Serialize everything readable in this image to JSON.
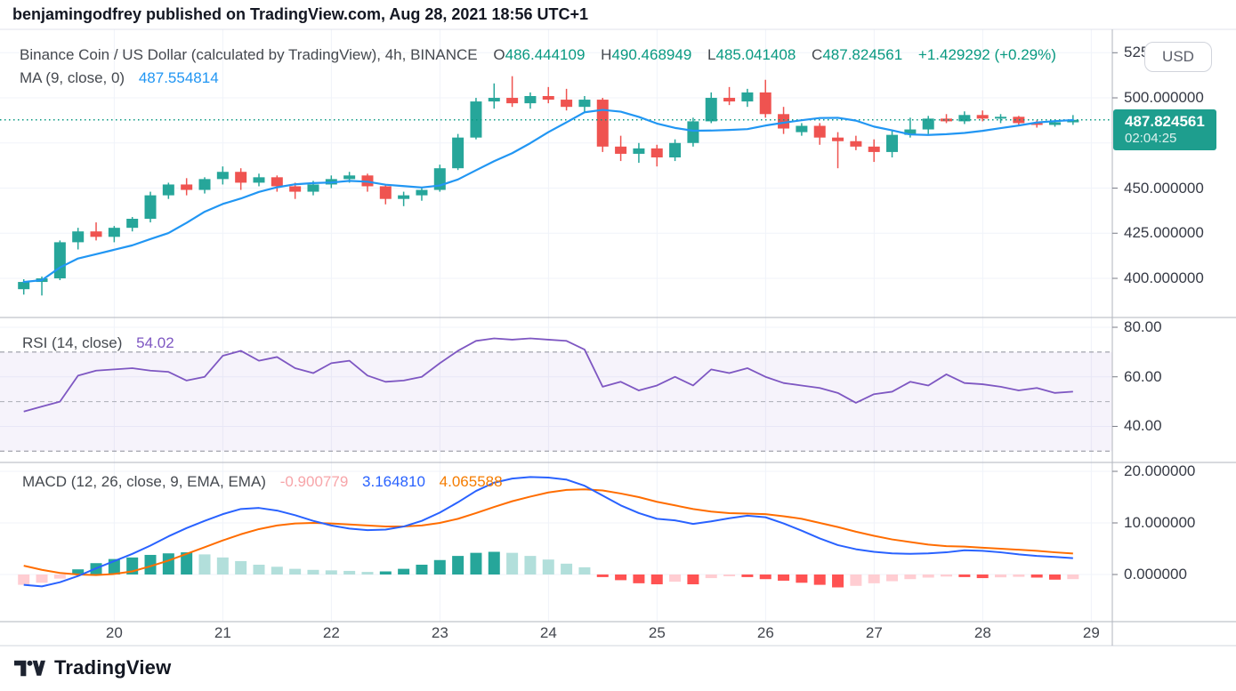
{
  "attribution": {
    "text": "benjamingodfrey published on TradingView.com, Aug 28, 2021 18:56 UTC+1"
  },
  "symbol_header": {
    "title": "Binance Coin / US Dollar (calculated by TradingView), 4h, BINANCE",
    "ohlc": [
      {
        "label": "O",
        "value": "486.444109"
      },
      {
        "label": "H",
        "value": "490.468949"
      },
      {
        "label": "L",
        "value": "485.041408"
      },
      {
        "label": "C",
        "value": "487.824561"
      }
    ],
    "change": "+1.429292 (+0.29%)"
  },
  "ma_legend": {
    "label": "MA (9, close, 0)",
    "value": "487.554814"
  },
  "rsi_legend": {
    "label": "RSI (14, close)",
    "value": "54.02"
  },
  "macd_legend": {
    "label": "MACD (12, 26, close, 9, EMA, EMA)",
    "hist_value": "-0.900779",
    "macd_value": "3.164810",
    "signal_value": "4.065588"
  },
  "price_axis": {
    "currency_button": "USD",
    "ticks": [
      {
        "value": 525,
        "label": "525.000000"
      },
      {
        "value": 500,
        "label": "500.000000"
      },
      {
        "value": 450,
        "label": "450.000000"
      },
      {
        "value": 425,
        "label": "425.000000"
      },
      {
        "value": 400,
        "label": "400.000000"
      }
    ],
    "last_price": "487.824561",
    "countdown": "02:04:25"
  },
  "rsi_axis": {
    "ticks": [
      {
        "value": 80,
        "label": "80.00"
      },
      {
        "value": 60,
        "label": "60.00"
      },
      {
        "value": 40,
        "label": "40.00"
      }
    ]
  },
  "macd_axis": {
    "ticks": [
      {
        "value": 20,
        "label": "20.000000"
      },
      {
        "value": 10,
        "label": "10.000000"
      },
      {
        "value": 0,
        "label": "0.000000"
      }
    ]
  },
  "time_axis": {
    "labels": [
      "20",
      "21",
      "22",
      "23",
      "24",
      "25",
      "26",
      "27",
      "28",
      "29"
    ]
  },
  "footer": {
    "brand": "TradingView"
  },
  "colors": {
    "up": "#26a69a",
    "down": "#ef5350",
    "hist_up": "#26a69a",
    "hist_up_fade": "#b2dfdb",
    "hist_down": "#ff5252",
    "hist_down_fade": "#ffcdd2",
    "ma_line": "#2196f3",
    "macd_line": "#2962ff",
    "signal_line": "#ff6d00",
    "rsi_line": "#7e57c2",
    "rsi_band_fill": "rgba(126,87,194,0.07)",
    "price_line": "#089981",
    "badge": "#1e9e8e",
    "grid": "#f0f3fa",
    "separator": "#b2b5be",
    "axis_text": "#363a45"
  },
  "chart_data": {
    "type": "candlestick",
    "title": "Binance Coin / US Dollar",
    "exchange": "BINANCE",
    "interval": "4h",
    "price_grid_levels": [
      525,
      500,
      475,
      450,
      425,
      400
    ],
    "price_ylim": [
      378,
      538.5
    ],
    "last_close": 487.824561,
    "candles": [
      [
        394,
        399.5,
        391,
        398
      ],
      [
        398,
        401,
        390.5,
        400
      ],
      [
        400,
        421,
        399,
        420
      ],
      [
        420,
        428,
        416,
        426
      ],
      [
        426,
        431,
        421,
        423
      ],
      [
        423,
        429,
        420,
        428
      ],
      [
        428,
        434,
        426,
        433
      ],
      [
        433,
        448,
        431,
        446
      ],
      [
        446,
        453,
        444,
        452
      ],
      [
        452,
        455.5,
        446,
        449
      ],
      [
        449,
        456,
        447,
        455
      ],
      [
        455,
        462,
        452,
        459
      ],
      [
        459,
        461,
        449,
        453
      ],
      [
        453,
        458,
        451,
        456
      ],
      [
        456,
        457,
        448,
        451
      ],
      [
        451,
        453,
        444,
        448
      ],
      [
        448,
        454,
        446,
        452
      ],
      [
        452,
        457,
        450,
        455
      ],
      [
        455,
        459,
        453,
        457
      ],
      [
        457,
        458,
        448,
        451
      ],
      [
        451,
        452,
        441,
        444
      ],
      [
        444,
        448,
        440,
        446
      ],
      [
        446,
        450,
        443,
        449
      ],
      [
        449,
        463,
        448,
        461
      ],
      [
        461,
        480,
        460,
        478
      ],
      [
        478,
        500,
        477,
        498
      ],
      [
        498,
        508,
        494,
        500
      ],
      [
        500,
        512,
        495,
        497
      ],
      [
        497,
        503,
        494,
        501
      ],
      [
        501,
        506,
        497,
        499
      ],
      [
        499,
        505,
        493,
        495
      ],
      [
        495,
        501,
        492,
        499
      ],
      [
        499,
        500,
        470,
        473
      ],
      [
        473,
        479,
        465,
        469
      ],
      [
        469,
        475,
        464,
        472
      ],
      [
        472,
        474,
        462,
        467
      ],
      [
        467,
        477,
        465,
        475
      ],
      [
        475,
        489,
        473,
        487
      ],
      [
        487,
        503,
        486,
        500
      ],
      [
        500,
        506,
        496,
        498
      ],
      [
        498,
        505,
        495,
        503
      ],
      [
        503,
        510,
        489,
        491
      ],
      [
        491,
        495,
        480,
        483
      ],
      [
        481,
        486,
        479,
        484.5
      ],
      [
        484.5,
        486,
        474,
        478
      ],
      [
        478,
        481,
        461,
        476
      ],
      [
        476,
        479,
        471,
        473
      ],
      [
        473,
        477,
        464.5,
        470
      ],
      [
        470,
        482,
        467,
        479.5
      ],
      [
        479.5,
        489,
        478,
        482.5
      ],
      [
        482.5,
        490,
        480,
        488.5
      ],
      [
        488.5,
        491,
        486,
        487
      ],
      [
        487,
        492.5,
        485.5,
        490.5
      ],
      [
        490.5,
        493,
        487,
        488.5
      ],
      [
        488.5,
        491,
        486,
        489.5
      ],
      [
        489.5,
        490,
        484.5,
        486
      ],
      [
        486,
        487.5,
        483.5,
        485
      ],
      [
        485,
        487,
        484,
        486.5
      ],
      [
        486.44,
        490.47,
        485.04,
        487.82
      ]
    ],
    "ma_period": 9,
    "rsi": {
      "period": 14,
      "overbought": 70,
      "oversold": 30,
      "mid": 50,
      "ylim": [
        25.7,
        83.9
      ],
      "values": [
        46,
        48,
        50,
        60.5,
        62.5,
        63,
        63.5,
        62.5,
        62,
        58.5,
        60,
        68.5,
        70.5,
        66.5,
        68,
        63.5,
        61.5,
        65.5,
        66.5,
        60.5,
        58,
        58.5,
        60,
        65.5,
        70.5,
        74.5,
        75.5,
        75,
        75.5,
        75,
        74.5,
        71,
        56,
        58,
        54.5,
        56.5,
        60,
        56.5,
        63,
        61.5,
        63.5,
        60,
        57.5,
        56.5,
        55.5,
        53.5,
        49.5,
        53,
        54,
        58,
        56.5,
        61,
        57.5,
        57,
        56,
        54.5,
        55.5,
        53.5,
        54.02
      ]
    },
    "macd": {
      "ylim": [
        -9.3,
        21.7
      ],
      "macd": [
        -2.0,
        -2.3,
        -1.5,
        -0.3,
        1.2,
        2.6,
        4.0,
        5.6,
        7.4,
        9.0,
        10.4,
        11.7,
        12.7,
        12.9,
        12.4,
        11.5,
        10.4,
        9.5,
        8.9,
        8.6,
        8.7,
        9.3,
        10.4,
        12.0,
        14.0,
        16.2,
        17.8,
        18.6,
        18.9,
        18.8,
        18.4,
        17.2,
        15.3,
        13.4,
        11.9,
        10.8,
        10.5,
        9.8,
        10.3,
        10.9,
        11.4,
        11.1,
        9.9,
        8.5,
        7.0,
        5.7,
        4.9,
        4.4,
        4.1,
        4.0,
        4.1,
        4.3,
        4.7,
        4.6,
        4.3,
        3.9,
        3.6,
        3.4,
        3.16
      ],
      "signal": [
        1.7,
        0.9,
        0.3,
        0.0,
        -0.1,
        0.1,
        0.6,
        1.6,
        2.7,
        4.0,
        5.3,
        6.6,
        7.8,
        8.8,
        9.5,
        9.9,
        10.0,
        9.9,
        9.7,
        9.5,
        9.3,
        9.3,
        9.5,
        10.0,
        10.8,
        11.9,
        13.1,
        14.2,
        15.1,
        15.9,
        16.4,
        16.5,
        16.3,
        15.7,
        15.0,
        14.1,
        13.4,
        12.7,
        12.2,
        11.9,
        11.8,
        11.7,
        11.3,
        10.8,
        10.0,
        9.2,
        8.3,
        7.5,
        6.8,
        6.3,
        5.8,
        5.5,
        5.4,
        5.2,
        5.0,
        4.8,
        4.6,
        4.3,
        4.07
      ],
      "hist": [
        -2.0,
        -1.6,
        -0.8,
        1.0,
        2.2,
        3.0,
        3.3,
        3.8,
        4.1,
        4.3,
        3.9,
        3.3,
        2.6,
        1.9,
        1.5,
        1.1,
        0.9,
        0.8,
        0.7,
        0.5,
        0.6,
        1.1,
        1.9,
        2.8,
        3.6,
        4.2,
        4.4,
        4.2,
        3.6,
        2.9,
        2.1,
        1.4,
        -0.5,
        -1.1,
        -1.7,
        -1.9,
        -1.4,
        -1.9,
        -0.7,
        -0.35,
        -0.5,
        -0.9,
        -1.2,
        -1.6,
        -2.0,
        -2.5,
        -2.2,
        -1.7,
        -1.3,
        -0.9,
        -0.6,
        -0.4,
        -0.5,
        -0.7,
        -0.55,
        -0.45,
        -0.6,
        -1.0,
        -0.9
      ]
    },
    "x_day_labels": [
      "20",
      "21",
      "22",
      "23",
      "24",
      "25",
      "26",
      "27",
      "28",
      "29"
    ]
  }
}
